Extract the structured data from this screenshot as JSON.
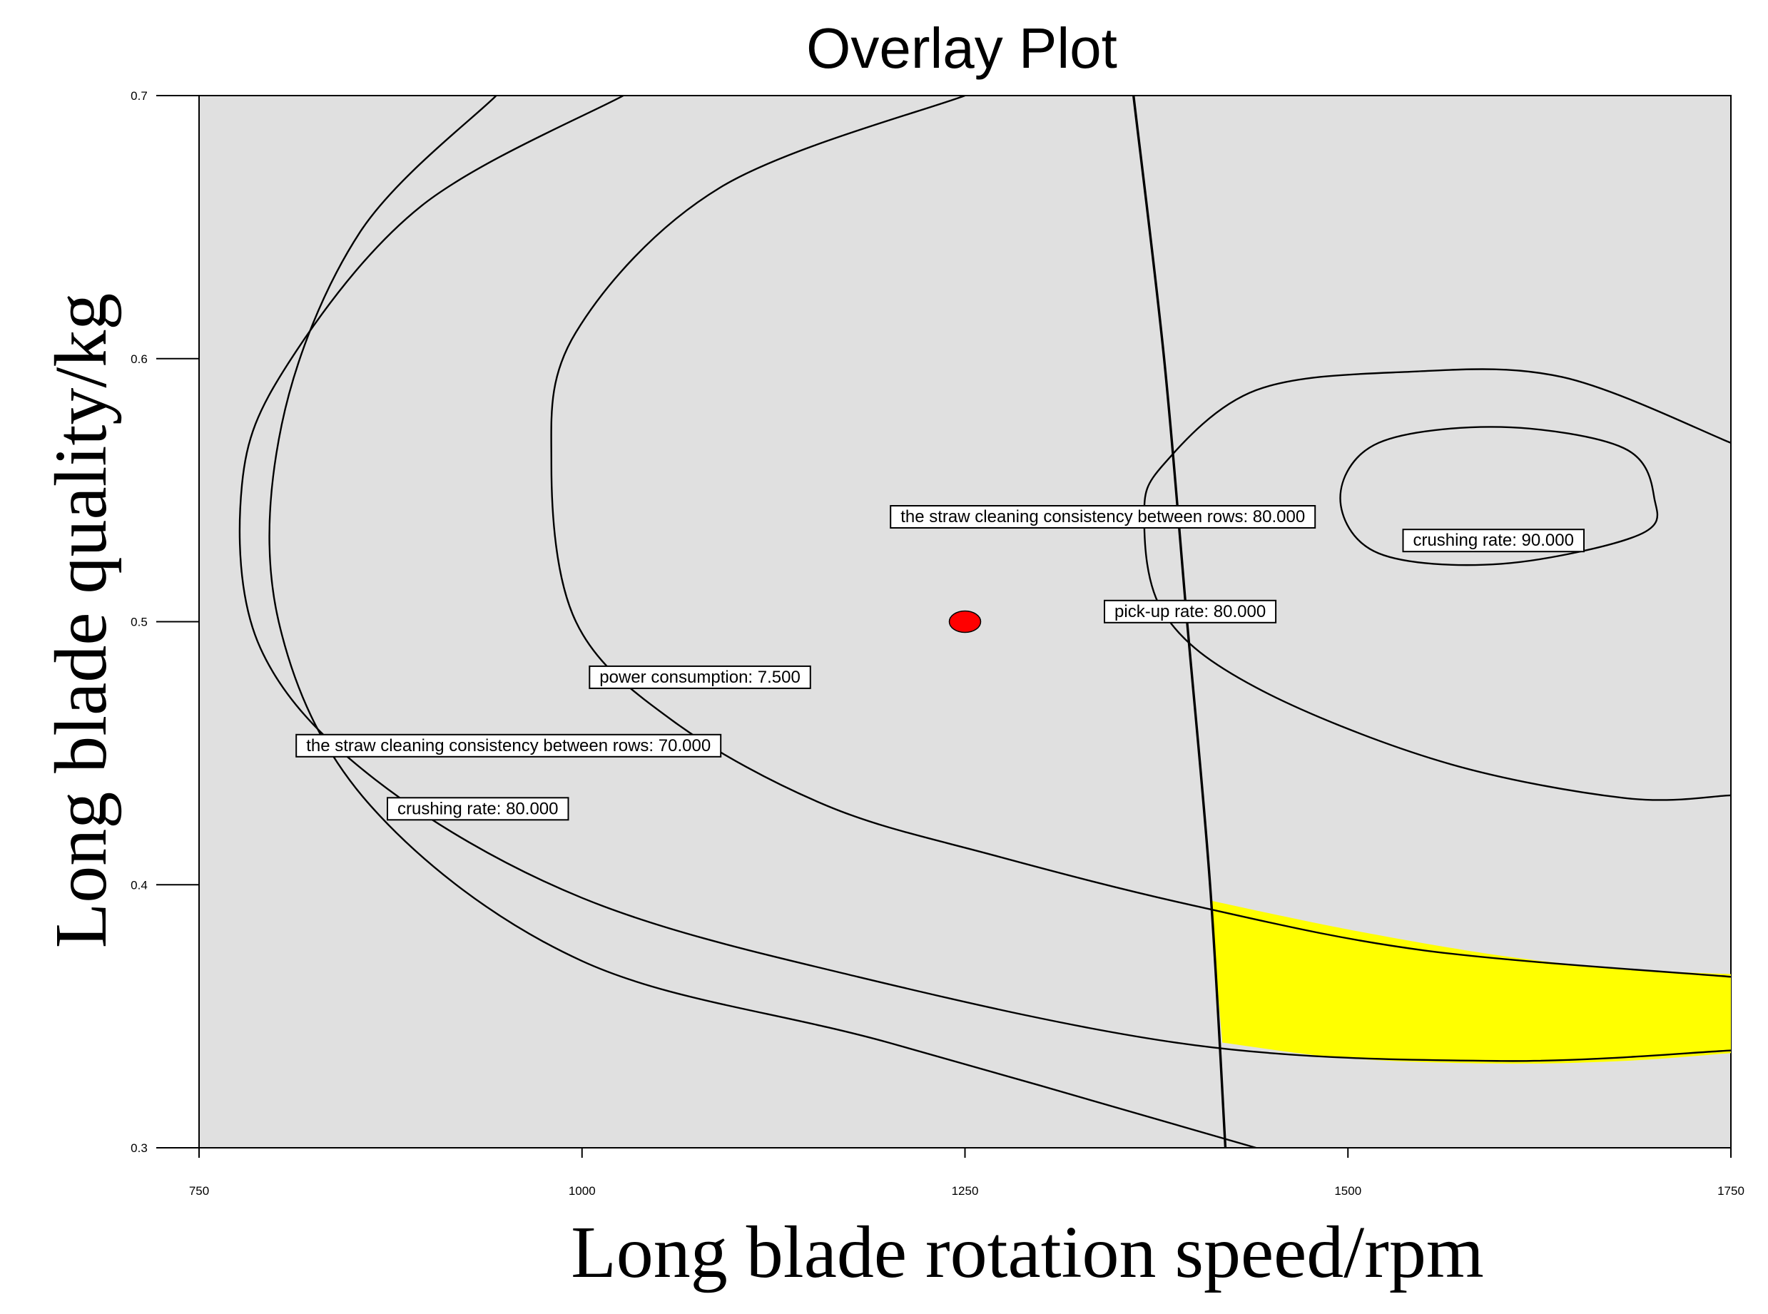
{
  "chart_data": {
    "type": "contour",
    "title": "Overlay Plot",
    "xlabel": "Long blade rotation speed/rpm",
    "ylabel": "Long blade quality/kg",
    "xlim": [
      750,
      1750
    ],
    "ylim": [
      0.3,
      0.7
    ],
    "x_ticks": [
      "750",
      "1000",
      "1250",
      "1500",
      "1750"
    ],
    "y_ticks": [
      "0.3",
      "0.4",
      "0.5",
      "0.6",
      "0.7"
    ],
    "grid": false,
    "colors": {
      "background": "#e0e0e0",
      "feasible_region": "#ffff00",
      "design_point": "#ff0000",
      "contour": "#000000"
    },
    "design_point": {
      "x": 1250,
      "y": 0.5
    },
    "contour_labels": [
      {
        "text": "the straw cleaning consistency between rows: 80.000",
        "x": 1340,
        "y": 0.54
      },
      {
        "text": "crushing rate: 90.000",
        "x": 1595,
        "y": 0.531
      },
      {
        "text": "pick-up rate: 80.000",
        "x": 1397,
        "y": 0.504
      },
      {
        "text": "power consumption: 7.500",
        "x": 1077,
        "y": 0.479
      },
      {
        "text": "the straw cleaning consistency between rows: 70.000",
        "x": 952,
        "y": 0.453
      },
      {
        "text": "crushing rate: 80.000",
        "x": 932,
        "y": 0.429
      }
    ],
    "curves": [
      {
        "label": "the straw cleaning consistency between rows: 70.000",
        "points": [
          [
            944,
            0.7
          ],
          [
            855,
            0.648
          ],
          [
            804,
            0.575
          ],
          [
            802,
            0.5
          ],
          [
            862,
            0.43
          ],
          [
            1000,
            0.371
          ],
          [
            1200,
            0.34
          ],
          [
            1440,
            0.3
          ]
        ]
      },
      {
        "label": "crushing rate: 80.000",
        "points": [
          [
            1027,
            0.7
          ],
          [
            895,
            0.658
          ],
          [
            808,
            0.598
          ],
          [
            778,
            0.552
          ],
          [
            790,
            0.49
          ],
          [
            865,
            0.44
          ],
          [
            1000,
            0.395
          ],
          [
            1180,
            0.365
          ],
          [
            1400,
            0.339
          ],
          [
            1600,
            0.333
          ],
          [
            1750,
            0.337
          ]
        ]
      },
      {
        "label": "power consumption: 7.500",
        "points": [
          [
            1250,
            0.7
          ],
          [
            1090,
            0.665
          ],
          [
            996,
            0.61
          ],
          [
            980,
            0.56
          ],
          [
            996,
            0.5
          ],
          [
            1060,
            0.462
          ],
          [
            1160,
            0.43
          ],
          [
            1270,
            0.411
          ],
          [
            1400,
            0.392
          ],
          [
            1550,
            0.375
          ],
          [
            1750,
            0.365
          ]
        ]
      },
      {
        "label": "pick-up rate: 80.000",
        "points": [
          [
            1360,
            0.7
          ],
          [
            1380,
            0.6
          ],
          [
            1395,
            0.5
          ],
          [
            1410,
            0.4
          ],
          [
            1420,
            0.3
          ]
        ]
      },
      {
        "label": "the straw cleaning consistency between rows: 80.000",
        "points": [
          [
            1750,
            0.568
          ],
          [
            1640,
            0.593
          ],
          [
            1540,
            0.595
          ],
          [
            1440,
            0.588
          ],
          [
            1380,
            0.56
          ],
          [
            1367,
            0.54
          ],
          [
            1380,
            0.503
          ],
          [
            1440,
            0.475
          ],
          [
            1560,
            0.447
          ],
          [
            1680,
            0.433
          ],
          [
            1750,
            0.434
          ]
        ]
      },
      {
        "label": "crushing rate: 90.000",
        "points": [
          [
            1600,
            0.522
          ],
          [
            1690,
            0.533
          ],
          [
            1700,
            0.547
          ],
          [
            1680,
            0.566
          ],
          [
            1600,
            0.574
          ],
          [
            1520,
            0.568
          ],
          [
            1495,
            0.547
          ],
          [
            1520,
            0.526
          ],
          [
            1600,
            0.522
          ]
        ]
      }
    ],
    "feasible_region": [
      [
        1410,
        0.394
      ],
      [
        1500,
        0.383
      ],
      [
        1600,
        0.373
      ],
      [
        1680,
        0.368
      ],
      [
        1750,
        0.366
      ],
      [
        1750,
        0.336
      ],
      [
        1680,
        0.333
      ],
      [
        1600,
        0.332
      ],
      [
        1500,
        0.334
      ],
      [
        1418,
        0.34
      ]
    ]
  }
}
